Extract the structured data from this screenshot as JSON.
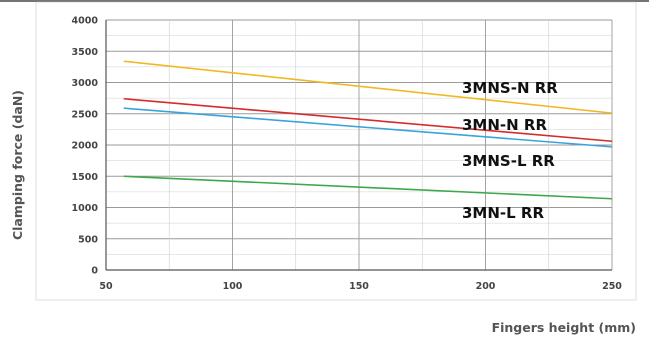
{
  "chart_data": {
    "type": "line",
    "title": "",
    "xlabel": "Fingers height (mm)",
    "ylabel": "Clamping force (daN)",
    "xlim": [
      50,
      250
    ],
    "ylim": [
      0,
      4000
    ],
    "x_ticks": [
      "50",
      "100",
      "150",
      "200",
      "250"
    ],
    "y_ticks": [
      "0",
      "500",
      "1000",
      "1500",
      "2000",
      "2500",
      "3000",
      "3500",
      "4000"
    ],
    "grid": true,
    "legend": "labels placed on lines",
    "series": [
      {
        "name": "3MNS-N RR",
        "color": "#f2b824",
        "x": [
          57,
          250
        ],
        "y": [
          3340,
          2510
        ]
      },
      {
        "name": "3MN-N RR",
        "color": "#d52b2b",
        "x": [
          57,
          250
        ],
        "y": [
          2740,
          2060
        ]
      },
      {
        "name": "3MNS-L RR",
        "color": "#3aa3dc",
        "x": [
          57,
          250
        ],
        "y": [
          2590,
          1970
        ]
      },
      {
        "name": "3MN-L RR",
        "color": "#3da84a",
        "x": [
          57,
          250
        ],
        "y": [
          1500,
          1140
        ]
      }
    ]
  }
}
